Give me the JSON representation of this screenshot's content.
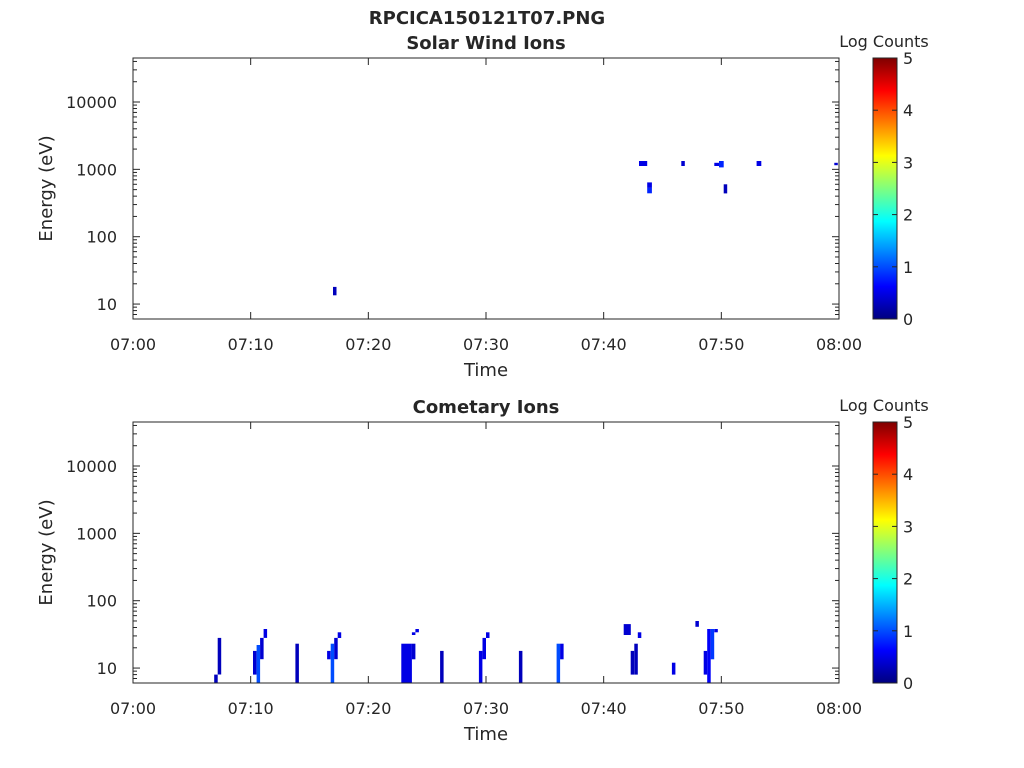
{
  "figure_title": "RPCICA150121T07.PNG",
  "colorbar": {
    "label": "Log Counts",
    "range": [
      0,
      5
    ],
    "ticks": [
      "0",
      "1",
      "2",
      "3",
      "4",
      "5"
    ],
    "colormap": "jet",
    "stops": [
      "#00007f",
      "#0000ff",
      "#007fff",
      "#00ffff",
      "#7fff7f",
      "#ffff00",
      "#ff7f00",
      "#ff0000",
      "#7f0000"
    ]
  },
  "chart_data": [
    {
      "type": "heatmap",
      "title": "Solar Wind Ions",
      "xlabel": "Time",
      "ylabel": "Energy (eV)",
      "x_range": [
        "07:00",
        "08:00"
      ],
      "x_ticks": [
        "07:00",
        "07:10",
        "07:20",
        "07:30",
        "07:40",
        "07:50",
        "08:00"
      ],
      "y_scale": "log",
      "y_range": [
        6,
        45000
      ],
      "y_ticks": [
        10,
        100,
        1000,
        10000
      ],
      "y_tick_labels": [
        "10",
        "100",
        "1000",
        "10000"
      ],
      "cells": [
        {
          "t0": 17.0,
          "t1": 17.3,
          "e0": 13.5,
          "e1": 18,
          "v": 0.3
        },
        {
          "t0": 43.0,
          "t1": 43.7,
          "e0": 1120,
          "e1": 1330,
          "v": 0.5
        },
        {
          "t0": 43.7,
          "t1": 44.1,
          "e0": 440,
          "e1": 530,
          "v": 0.8
        },
        {
          "t0": 43.7,
          "t1": 44.1,
          "e0": 530,
          "e1": 640,
          "v": 0.5
        },
        {
          "t0": 46.6,
          "t1": 46.9,
          "e0": 1120,
          "e1": 1330,
          "v": 0.4
        },
        {
          "t0": 49.4,
          "t1": 49.8,
          "e0": 1120,
          "e1": 1250,
          "v": 0.5
        },
        {
          "t0": 49.8,
          "t1": 50.2,
          "e0": 1070,
          "e1": 1330,
          "v": 0.8
        },
        {
          "t0": 50.2,
          "t1": 50.5,
          "e0": 440,
          "e1": 600,
          "v": 0.3
        },
        {
          "t0": 53.0,
          "t1": 53.4,
          "e0": 1120,
          "e1": 1330,
          "v": 0.5
        },
        {
          "t0": 59.6,
          "t1": 59.9,
          "e0": 1150,
          "e1": 1250,
          "v": 0.4
        }
      ]
    },
    {
      "type": "heatmap",
      "title": "Cometary Ions",
      "xlabel": "Time",
      "ylabel": "Energy (eV)",
      "x_range": [
        "07:00",
        "08:00"
      ],
      "x_ticks": [
        "07:00",
        "07:10",
        "07:20",
        "07:30",
        "07:40",
        "07:50",
        "08:00"
      ],
      "y_scale": "log",
      "y_range": [
        6,
        45000
      ],
      "y_ticks": [
        10,
        100,
        1000,
        10000
      ],
      "y_tick_labels": [
        "10",
        "100",
        "1000",
        "10000"
      ],
      "cells": [
        {
          "t0": 6.9,
          "t1": 7.2,
          "e0": 6,
          "e1": 8,
          "v": 0.3
        },
        {
          "t0": 7.2,
          "t1": 7.5,
          "e0": 8,
          "e1": 28,
          "v": 0.3
        },
        {
          "t0": 10.2,
          "t1": 10.5,
          "e0": 8,
          "e1": 18,
          "v": 0.4
        },
        {
          "t0": 10.5,
          "t1": 10.8,
          "e0": 6,
          "e1": 22,
          "v": 1.0
        },
        {
          "t0": 10.8,
          "t1": 11.1,
          "e0": 13.5,
          "e1": 28,
          "v": 0.4
        },
        {
          "t0": 11.1,
          "t1": 11.4,
          "e0": 28,
          "e1": 38,
          "v": 0.5
        },
        {
          "t0": 13.8,
          "t1": 14.1,
          "e0": 6,
          "e1": 23,
          "v": 0.3
        },
        {
          "t0": 16.5,
          "t1": 16.8,
          "e0": 13.5,
          "e1": 18,
          "v": 0.5
        },
        {
          "t0": 16.8,
          "t1": 17.1,
          "e0": 6,
          "e1": 23,
          "v": 1.0
        },
        {
          "t0": 17.1,
          "t1": 17.4,
          "e0": 13.5,
          "e1": 28,
          "v": 0.4
        },
        {
          "t0": 17.4,
          "t1": 17.7,
          "e0": 28,
          "e1": 34,
          "v": 0.5
        },
        {
          "t0": 22.8,
          "t1": 23.7,
          "e0": 6,
          "e1": 23,
          "v": 0.5
        },
        {
          "t0": 23.7,
          "t1": 24.0,
          "e0": 13.5,
          "e1": 23,
          "v": 0.4
        },
        {
          "t0": 23.7,
          "t1": 24.0,
          "e0": 31,
          "e1": 34,
          "v": 0.5
        },
        {
          "t0": 24.0,
          "t1": 24.3,
          "e0": 34,
          "e1": 38,
          "v": 0.5
        },
        {
          "t0": 26.1,
          "t1": 26.4,
          "e0": 6,
          "e1": 18,
          "v": 0.3
        },
        {
          "t0": 29.4,
          "t1": 29.7,
          "e0": 6,
          "e1": 18,
          "v": 0.5
        },
        {
          "t0": 29.7,
          "t1": 30.0,
          "e0": 13.5,
          "e1": 28,
          "v": 0.5
        },
        {
          "t0": 30.0,
          "t1": 30.3,
          "e0": 28,
          "e1": 34,
          "v": 0.5
        },
        {
          "t0": 32.8,
          "t1": 33.1,
          "e0": 6,
          "e1": 18,
          "v": 0.3
        },
        {
          "t0": 36.0,
          "t1": 36.3,
          "e0": 6,
          "e1": 23,
          "v": 1.0
        },
        {
          "t0": 36.3,
          "t1": 36.6,
          "e0": 13.5,
          "e1": 23,
          "v": 0.5
        },
        {
          "t0": 41.7,
          "t1": 42.3,
          "e0": 31,
          "e1": 45,
          "v": 0.4
        },
        {
          "t0": 42.3,
          "t1": 42.6,
          "e0": 8,
          "e1": 18,
          "v": 0.3
        },
        {
          "t0": 42.6,
          "t1": 42.9,
          "e0": 8,
          "e1": 23,
          "v": 0.3
        },
        {
          "t0": 42.9,
          "t1": 43.2,
          "e0": 28,
          "e1": 34,
          "v": 0.5
        },
        {
          "t0": 45.8,
          "t1": 46.1,
          "e0": 8,
          "e1": 12,
          "v": 0.5
        },
        {
          "t0": 47.8,
          "t1": 48.1,
          "e0": 41,
          "e1": 50,
          "v": 0.4
        },
        {
          "t0": 48.5,
          "t1": 48.8,
          "e0": 8,
          "e1": 18,
          "v": 0.5
        },
        {
          "t0": 48.8,
          "t1": 49.1,
          "e0": 6,
          "e1": 38,
          "v": 0.6
        },
        {
          "t0": 49.1,
          "t1": 49.4,
          "e0": 13.5,
          "e1": 38,
          "v": 0.9
        },
        {
          "t0": 49.4,
          "t1": 49.7,
          "e0": 34,
          "e1": 38,
          "v": 0.5
        }
      ]
    }
  ]
}
